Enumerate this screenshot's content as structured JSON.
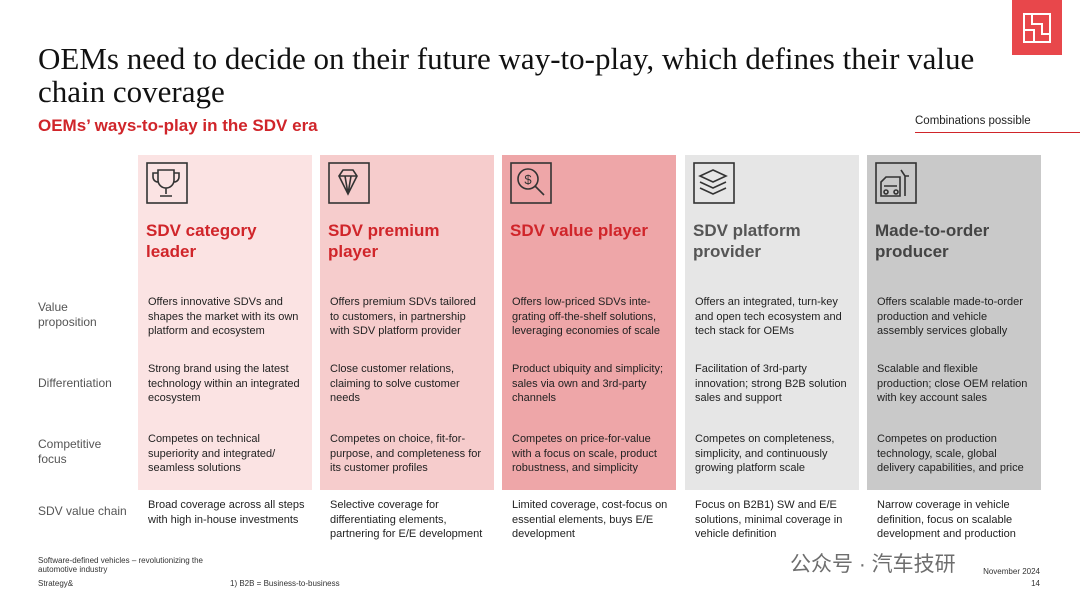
{
  "header": {
    "title": "OEMs need to decide on their future way-to-play, which defines their value chain coverage",
    "subtitle": "OEMs’ ways-to-play in the SDV era",
    "note": "Combinations possible"
  },
  "row_labels": [
    "Value proposition",
    "Differentiation",
    "Competitive focus",
    "SDV value chain"
  ],
  "columns": [
    {
      "heading": "SDV category leader",
      "cells": [
        "Offers innovative SDVs and shapes the market with its own platform and ecosystem",
        "Strong brand using the latest technology within an integrated ecosystem",
        "Competes on technical superiority and integrated/ seamless solutions",
        "Broad coverage across all steps with high in-house investments"
      ]
    },
    {
      "heading": "SDV premium player",
      "cells": [
        "Offers premium SDVs tailored to customers, in partnership with SDV platform provider",
        "Close customer relations, claiming to solve customer needs",
        "Competes on choice, fit-for-purpose, and completeness for its customer profiles",
        "Selective coverage for differentiating elements, partnering for E/E development"
      ]
    },
    {
      "heading": "SDV value player",
      "cells": [
        "Offers low-priced SDVs inte-grating off-the-shelf solutions, leveraging economies of scale",
        "Product ubiquity and simplicity; sales via own and 3rd-party channels",
        "Competes on price-for-value with a focus on scale, product robustness, and simplicity",
        "Limited coverage, cost-focus on essential elements, buys E/E development"
      ]
    },
    {
      "heading": "SDV platform provider",
      "cells": [
        "Offers an integrated, turn-key and open tech ecosystem and tech stack for OEMs",
        "Facilitation of 3rd-party innovation; strong B2B solution sales and support",
        "Competes on completeness, simplicity, and continuously growing platform scale",
        "Focus on B2B1) SW and E/E solutions, minimal coverage in vehicle definition"
      ]
    },
    {
      "heading": "Made-to-order producer",
      "cells": [
        "Offers scalable made-to-order production and vehicle assembly services globally",
        "Scalable and flexible production; close OEM relation with key account sales",
        "Competes on production technology, scale, global delivery capabilities, and price",
        "Narrow coverage in vehicle definition, focus on scalable development and production"
      ]
    }
  ],
  "footer": {
    "source": "Software-defined vehicles – revolutionizing the automotive industry",
    "brand": "Strategy&",
    "footnote": "1) B2B = Business-to-business",
    "date": "November 2024",
    "page": "14"
  },
  "watermark": "公众号 · 汽车技研"
}
